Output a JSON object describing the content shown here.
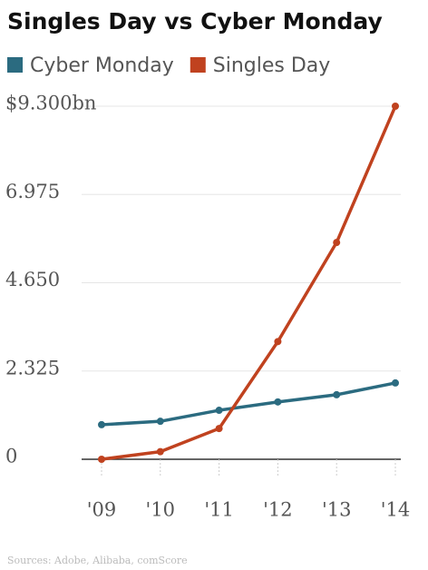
{
  "chart_data": {
    "type": "line",
    "title": "Singles Day vs Cyber Monday",
    "categories": [
      "'09",
      "'10",
      "'11",
      "'12",
      "'13",
      "'14"
    ],
    "series": [
      {
        "name": "Cyber Monday",
        "color": "#2b6b80",
        "values": [
          0.91,
          1.0,
          1.29,
          1.51,
          1.7,
          2.01
        ]
      },
      {
        "name": "Singles Day",
        "color": "#c0421f",
        "values": [
          0.0,
          0.2,
          0.81,
          3.1,
          5.71,
          9.3
        ]
      }
    ],
    "ylim": [
      0,
      9.3
    ],
    "yticks": [
      0,
      2.325,
      {
        "value": 4.65,
        "label": "4.650"
      },
      6.975,
      {
        "value": 9.3,
        "label": "$9.300bn"
      }
    ],
    "grid": true,
    "source": "Sources: Adobe, Alibaba, comScore"
  }
}
